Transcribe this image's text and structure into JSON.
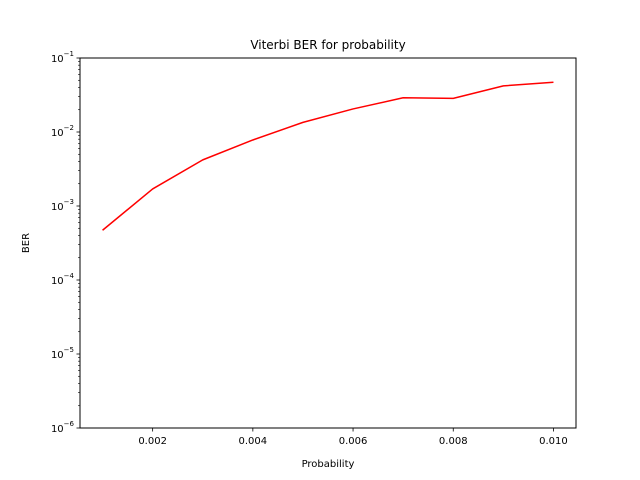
{
  "chart_data": {
    "type": "line",
    "title": "Viterbi BER for probability",
    "xlabel": "Probability",
    "ylabel": "BER",
    "xlim": [
      0.00055,
      0.01045
    ],
    "ylim": [
      1e-06,
      0.1
    ],
    "yscale": "log",
    "grid": false,
    "x_ticks": [
      0.002,
      0.004,
      0.006,
      0.008,
      0.01
    ],
    "x_tick_labels": [
      "0.002",
      "0.004",
      "0.006",
      "0.008",
      "0.010"
    ],
    "y_ticks": [
      {
        "value": 1e-06,
        "base": "10",
        "exp": "−6"
      },
      {
        "value": 1e-05,
        "base": "10",
        "exp": "−5"
      },
      {
        "value": 0.0001,
        "base": "10",
        "exp": "−4"
      },
      {
        "value": 0.001,
        "base": "10",
        "exp": "−3"
      },
      {
        "value": 0.01,
        "base": "10",
        "exp": "−2"
      },
      {
        "value": 0.1,
        "base": "10",
        "exp": "−1"
      }
    ],
    "series": [
      {
        "color": "#ff0000",
        "x": [
          0.001,
          0.002,
          0.003,
          0.004,
          0.005,
          0.006,
          0.007,
          0.008,
          0.009,
          0.01
        ],
        "values": [
          0.00047,
          0.0017,
          0.0042,
          0.0078,
          0.0135,
          0.0205,
          0.029,
          0.0285,
          0.042,
          0.047
        ]
      }
    ]
  }
}
